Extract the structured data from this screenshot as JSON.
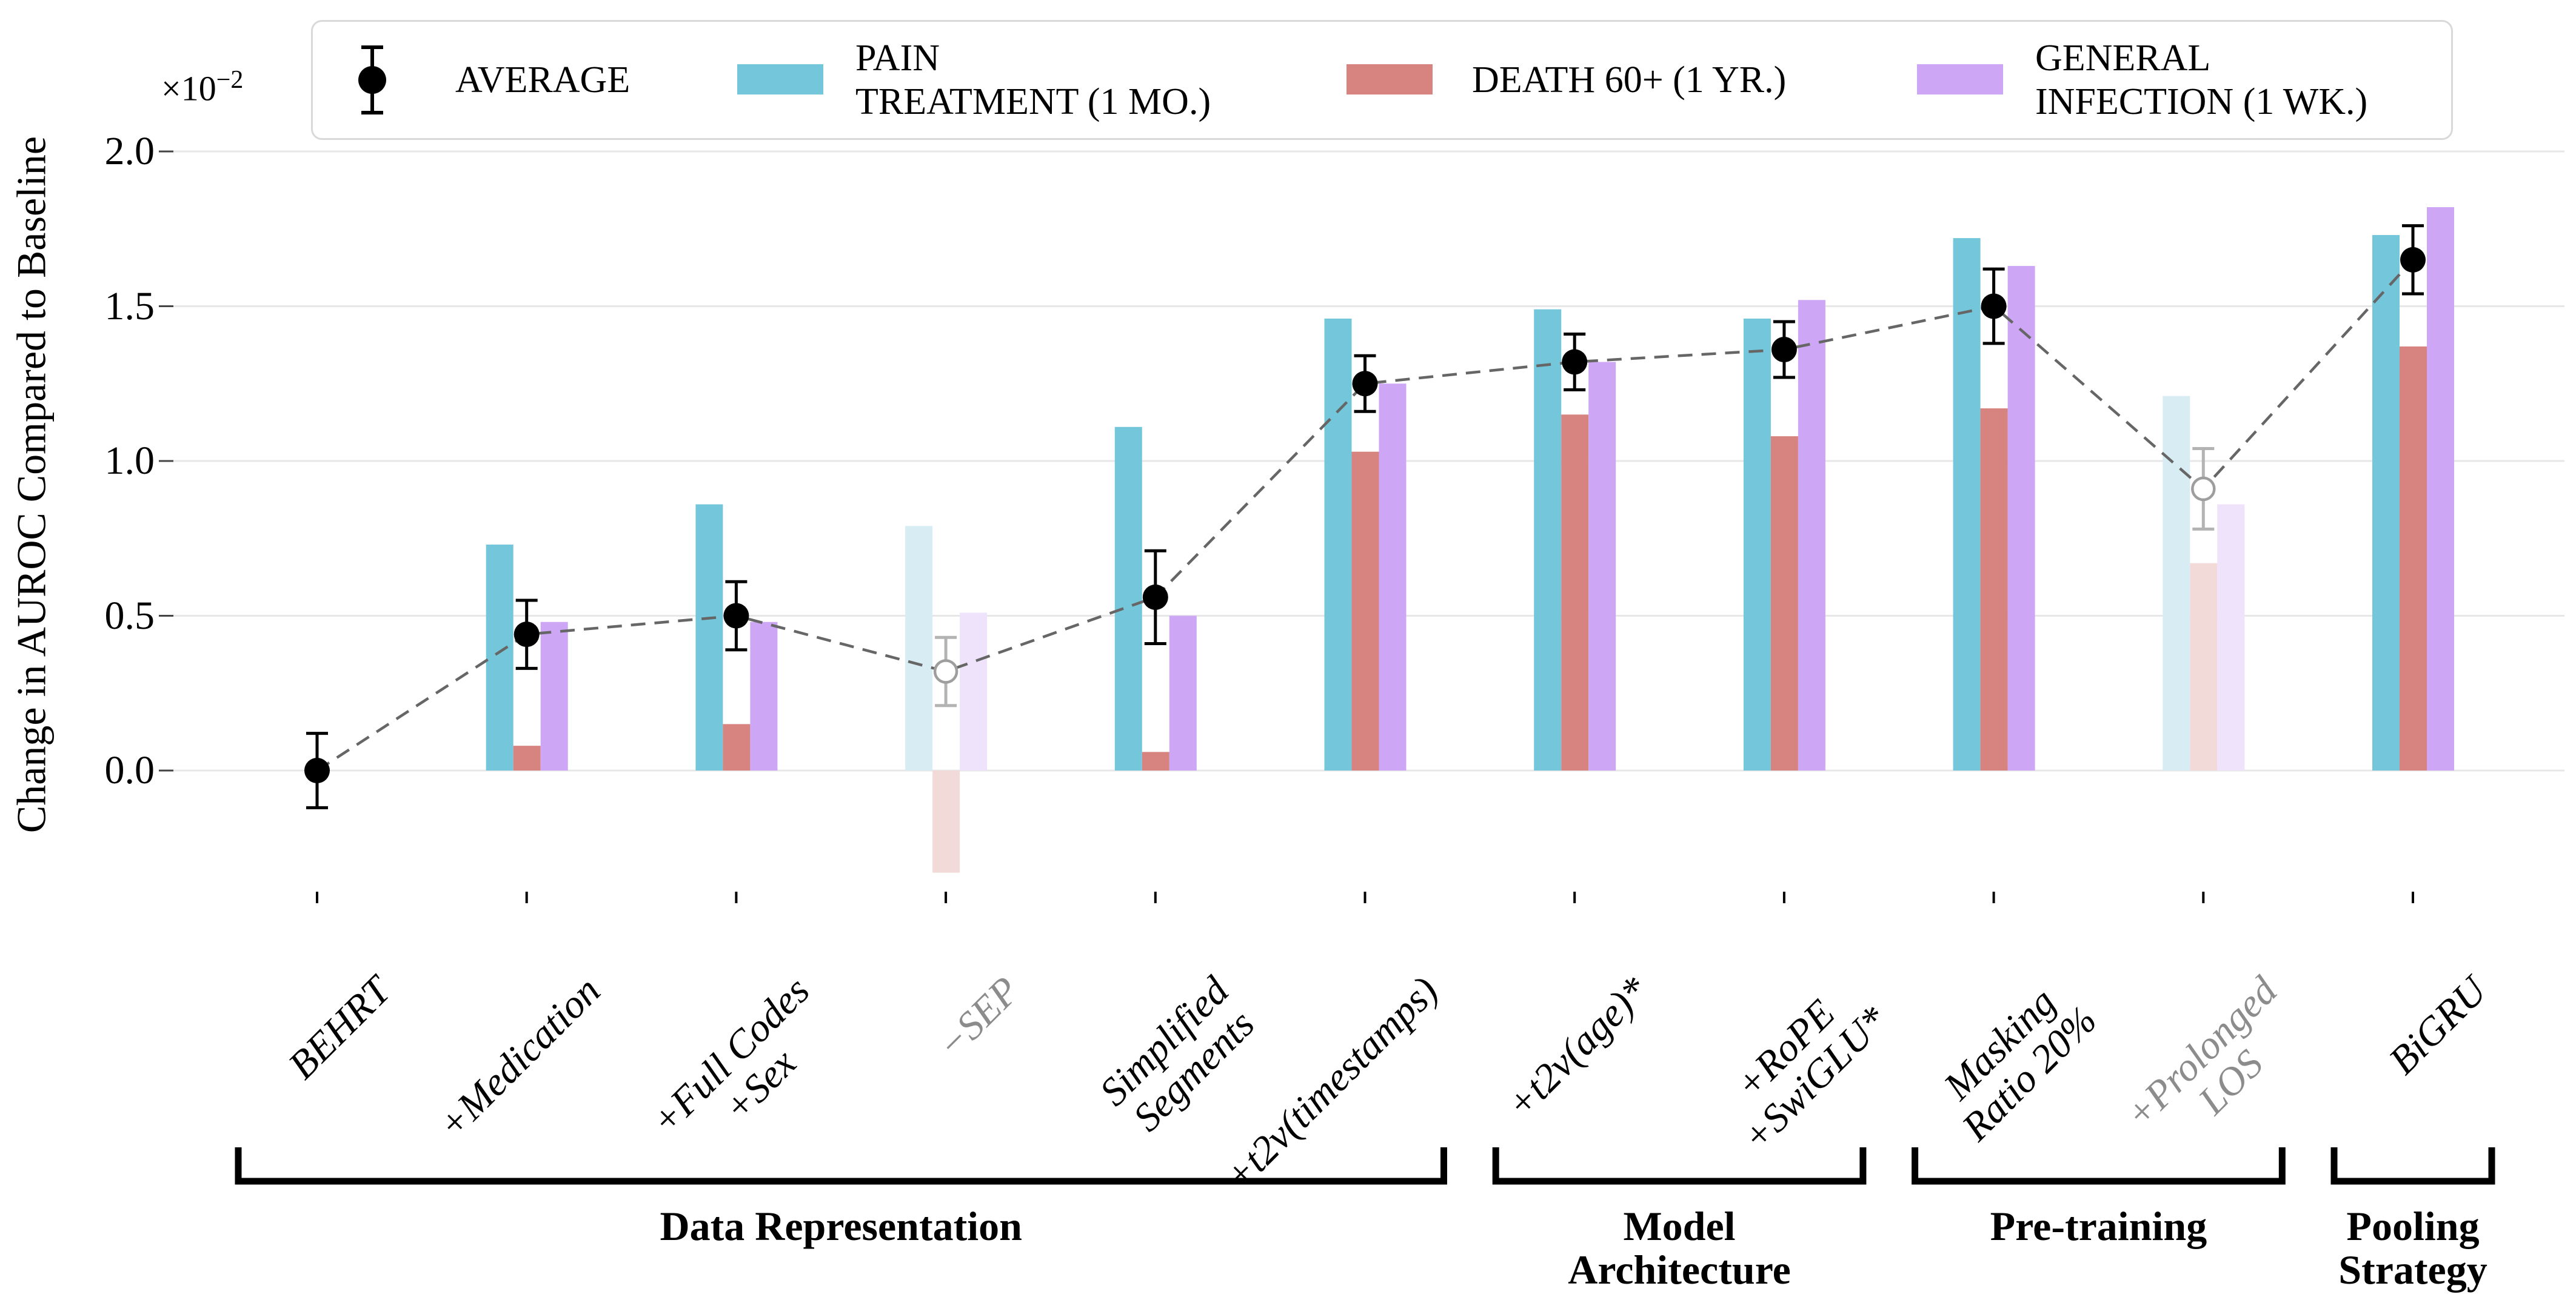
{
  "y_axis": {
    "label": "Change in AUROC Compared to Baseline",
    "offset_base": "×10",
    "offset_exp": "−2",
    "ticks": [
      "0.0",
      "0.5",
      "1.0",
      "1.5",
      "2.0"
    ]
  },
  "legend": {
    "average_label": "AVERAGE",
    "pain_line1": "PAIN",
    "pain_line2": "TREATMENT (1 MO.)",
    "death_label": "DEATH 60+ (1 YR.)",
    "infection_line1": "GENERAL",
    "infection_line2": "INFECTION (1 WK.)"
  },
  "colors": {
    "teal": "#74C7DB",
    "red": "#D7837F",
    "purple": "#CDA6F5",
    "teal_faded": "#D7EDF3",
    "red_faded": "#F2DAD8",
    "purple_faded": "#EFE2FB",
    "grid": "#E7E7E7",
    "dash_line": "#666666",
    "faded_marker": "#9E9E9E",
    "faded_error": "#B3B3B3",
    "faded_text": "#8C8C8C",
    "black": "#000000"
  },
  "chart_data": {
    "type": "bar",
    "title": "",
    "xlabel": "",
    "ylabel": "Change in AUROC Compared to Baseline",
    "y_scale_note": "all values ×10⁻²",
    "ylim": [
      -0.45,
      2.05
    ],
    "yticks": [
      0.0,
      0.5,
      1.0,
      1.5,
      2.0
    ],
    "grid": true,
    "legend_position": "top",
    "categories": [
      "BEHRT",
      "+Medication",
      "+Full Codes\n+Sex",
      "−SEP",
      "Simplified\nSegments",
      "+t2v(timestamps)",
      "+t2v(age)*",
      "+RoPE\n+SwiGLU*",
      "Masking\nRatio 20%",
      "+Prolonged\nLOS",
      "BiGRU"
    ],
    "faded": [
      false,
      false,
      false,
      true,
      false,
      false,
      false,
      false,
      false,
      true,
      false
    ],
    "series": [
      {
        "name": "PAIN TREATMENT (1 MO.)",
        "color": "#74C7DB",
        "faded_color": "#D7EDF3",
        "values": [
          0,
          0.73,
          0.86,
          0.79,
          1.11,
          1.46,
          1.49,
          1.46,
          1.72,
          1.21,
          1.73
        ]
      },
      {
        "name": "DEATH 60+ (1 YR.)",
        "color": "#D7837F",
        "faded_color": "#F2DAD8",
        "values": [
          0,
          0.08,
          0.15,
          -0.33,
          0.06,
          1.03,
          1.15,
          1.08,
          1.17,
          0.67,
          1.37
        ]
      },
      {
        "name": "GENERAL INFECTION (1 WK.)",
        "color": "#CDA6F5",
        "faded_color": "#EFE2FB",
        "values": [
          0,
          0.48,
          0.48,
          0.51,
          0.5,
          1.25,
          1.32,
          1.52,
          1.63,
          0.86,
          1.82
        ]
      }
    ],
    "average": {
      "name": "AVERAGE",
      "values": [
        0.0,
        0.44,
        0.5,
        0.32,
        0.56,
        1.25,
        1.32,
        1.36,
        1.5,
        0.91,
        1.65
      ],
      "errors": [
        0.12,
        0.11,
        0.11,
        0.11,
        0.15,
        0.09,
        0.09,
        0.09,
        0.12,
        0.13,
        0.11
      ]
    },
    "sections": [
      {
        "label": "Data Representation",
        "from": 0,
        "to": 5
      },
      {
        "label": "Model\nArchitecture",
        "from": 6,
        "to": 7
      },
      {
        "label": "Pre-training",
        "from": 8,
        "to": 9
      },
      {
        "label": "Pooling\nStrategy",
        "from": 10,
        "to": 10
      }
    ]
  }
}
